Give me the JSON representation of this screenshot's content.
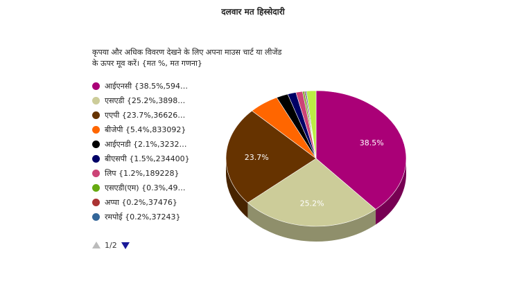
{
  "chart_data": {
    "type": "pie",
    "title": "दलवार मत हिस्सेदारी",
    "subtitle": "कृपया और अधिक विवरण देखने के लिए अपना माउस चार्ट या लीजेंड के ऊपर मूव करें। {मत %, मत गणना}",
    "slices": [
      {
        "label": "आईएनसी",
        "percent": 38.5,
        "legend": "आईएनसी {38.5%,594…",
        "color": "#aa0077"
      },
      {
        "label": "एसएडी",
        "percent": 25.2,
        "legend": "एसएडी {25.2%,3898…",
        "color": "#cccc99"
      },
      {
        "label": "एएपी",
        "percent": 23.7,
        "legend": "एएपी {23.7%,36626…",
        "color": "#663300"
      },
      {
        "label": "बीजेपी",
        "percent": 5.4,
        "legend": "बीजेपी {5.4%,833092}",
        "color": "#ff6600"
      },
      {
        "label": "आईएनडी",
        "percent": 2.1,
        "legend": "आईएनडी {2.1%,3232…",
        "color": "#000000"
      },
      {
        "label": "बीएसपी",
        "percent": 1.5,
        "legend": "बीएसपी {1.5%,234400}",
        "color": "#000066"
      },
      {
        "label": "लिप",
        "percent": 1.2,
        "legend": "लिप {1.2%,189228}",
        "color": "#cc4477"
      },
      {
        "label": "एसएडी(एम)",
        "percent": 0.3,
        "legend": "एसएडी(एम) {0.3%,49…",
        "color": "#66aa11"
      },
      {
        "label": "अप्पा",
        "percent": 0.2,
        "legend": "अप्पा {0.2%,37476}",
        "color": "#aa3333"
      },
      {
        "label": "रमपोई",
        "percent": 0.2,
        "legend": "रमपोई {0.2%,37243}",
        "color": "#336699"
      },
      {
        "label": "",
        "percent": 1.7,
        "legend": "",
        "color": "#bbee44"
      }
    ],
    "data_labels_shown": [
      "38.5%",
      "25.2%",
      "23.7%"
    ],
    "legend_position": "left"
  },
  "pager": {
    "text": "1/2"
  }
}
